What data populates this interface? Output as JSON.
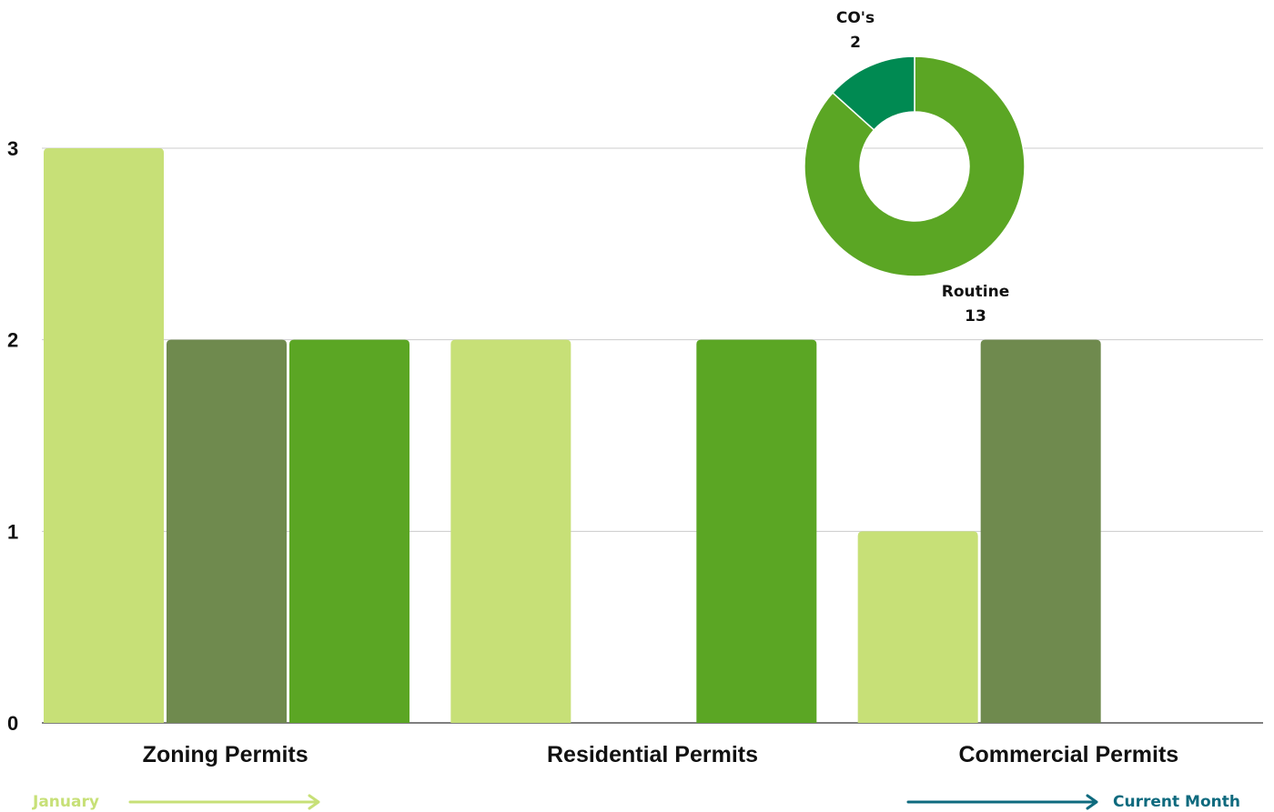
{
  "chart_data": [
    {
      "type": "bar",
      "categories": [
        "Zoning Permits",
        "Residential Permits",
        "Commercial Permits"
      ],
      "series": [
        {
          "values": [
            3,
            2,
            1
          ],
          "color": "#c7e077"
        },
        {
          "values": [
            2,
            0,
            2
          ],
          "color": "#6f8a4e"
        },
        {
          "values": [
            2,
            2,
            0
          ],
          "color": "#5ba624"
        }
      ],
      "yticks": [
        "0",
        "1",
        "2",
        "3"
      ],
      "ylim": [
        0,
        3.0
      ],
      "grid": true
    },
    {
      "type": "pie",
      "variant": "donut",
      "slices": [
        {
          "label": "Routine",
          "value": 13,
          "value_label": "13",
          "color": "#5ba624"
        },
        {
          "label": "CO's",
          "value": 2,
          "value_label": "2",
          "color": "#008a52"
        }
      ]
    }
  ],
  "legend": {
    "start_label": "January",
    "start_color": "#c7e077",
    "end_label": "Current Month",
    "end_color": "#0e6a7e"
  },
  "colors": {
    "grid": "#cccccc",
    "axis": "#333333",
    "text": "#111111"
  }
}
